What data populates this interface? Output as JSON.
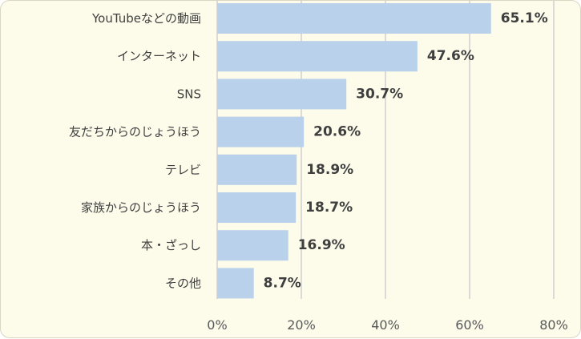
{
  "colors": {
    "bar": "#b9d1ea",
    "grid": "#d0d0d0",
    "background": "#fdfbea"
  },
  "chart_data": {
    "type": "bar",
    "orientation": "horizontal",
    "categories": [
      "YouTubeなどの動画",
      "インターネット",
      "SNS",
      "友だちからのじょうほう",
      "テレビ",
      "家族からのじょうほう",
      "本・ざっし",
      "その他"
    ],
    "values": [
      65.1,
      47.6,
      30.7,
      20.6,
      18.9,
      18.7,
      16.9,
      8.7
    ],
    "value_labels": [
      "65.1%",
      "47.6%",
      "30.7%",
      "20.6%",
      "18.9%",
      "18.7%",
      "16.9%",
      "8.7%"
    ],
    "x_ticks": [
      0,
      20,
      40,
      60,
      80
    ],
    "x_tick_labels": [
      "0%",
      "20%",
      "40%",
      "60%",
      "80%"
    ],
    "xlim": [
      0,
      80
    ],
    "grid": true,
    "legend": "none"
  }
}
